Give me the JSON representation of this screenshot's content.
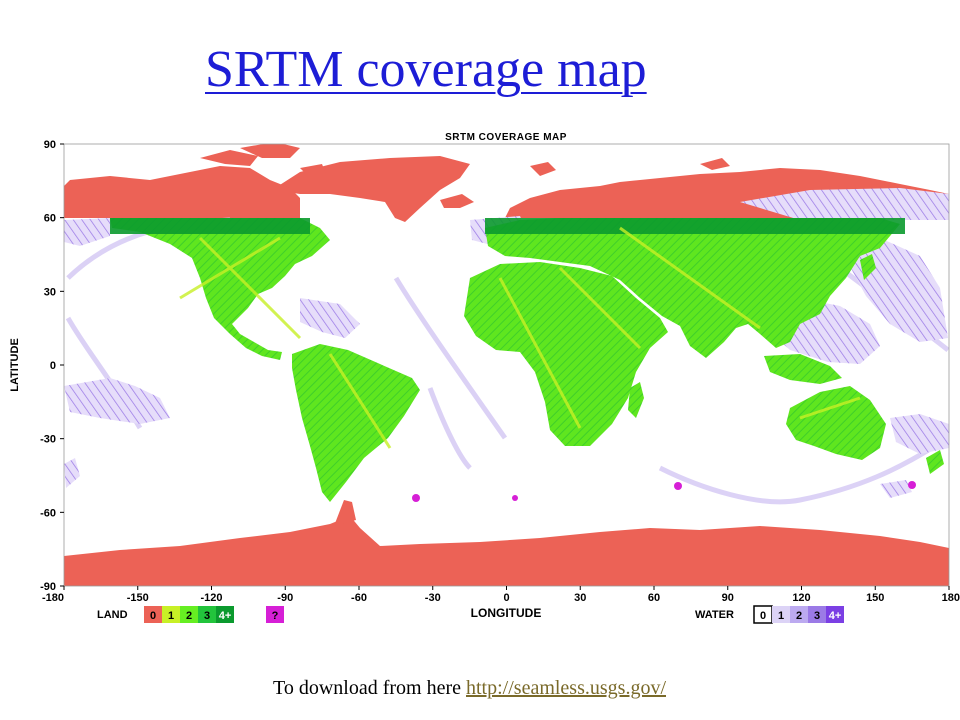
{
  "slide": {
    "title": "SRTM coverage map",
    "footer_text": "To download from here ",
    "footer_link": "http://seamless.usgs.gov/"
  },
  "map": {
    "title": "SRTM COVERAGE MAP",
    "xlabel": "LONGITUDE",
    "ylabel": "LATITUDE",
    "x_ticks": [
      "-180",
      "-150",
      "-120",
      "-90",
      "-60",
      "-30",
      "0",
      "30",
      "60",
      "90",
      "120",
      "150",
      "180"
    ],
    "x_tick_values": [
      -180,
      -150,
      -120,
      -90,
      -60,
      -30,
      0,
      30,
      60,
      90,
      120,
      150,
      180
    ],
    "y_ticks": [
      "90",
      "60",
      "30",
      "0",
      "-30",
      "-60",
      "-90"
    ],
    "y_tick_values": [
      90,
      60,
      30,
      0,
      -30,
      -60,
      -90
    ],
    "xlim": [
      -180,
      180
    ],
    "ylim": [
      -90,
      90
    ],
    "coverage_latitude_range": [
      -56,
      60
    ],
    "colors": {
      "no_coverage_land": "#ec6256",
      "land": [
        "#ec6256",
        "#c8f026",
        "#66ee22",
        "#22c43c",
        "#0b9a2e"
      ],
      "unknown": "#d61fd6",
      "water": [
        "#ffffff",
        "#dcd3f6",
        "#bcaaf0",
        "#9b7ae6",
        "#7b3fe4"
      ]
    }
  },
  "legend": {
    "land_label": "LAND",
    "land_items": [
      "0",
      "1",
      "2",
      "3",
      "4+"
    ],
    "unknown_item": "?",
    "water_label": "WATER",
    "water_items": [
      "0",
      "1",
      "2",
      "3",
      "4+"
    ]
  }
}
